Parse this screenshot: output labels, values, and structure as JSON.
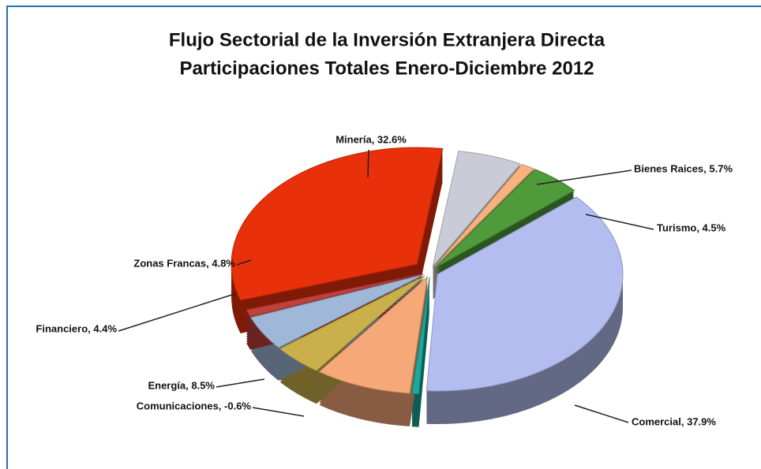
{
  "chart_data": {
    "type": "pie3d",
    "title": "Flujo Sectorial de la Inversión Extranjera Directa",
    "subtitle": "Participaciones Totales Enero-Diciembre 2012",
    "values": [
      32.6,
      5.7,
      1.2,
      4.5,
      37.9,
      -0.6,
      8.5,
      4.4,
      4.8,
      1.0
    ],
    "value_labels": [
      "Minería, 32.6%",
      "Bienes Raices, 5.7%",
      null,
      "Turismo, 4.5%",
      "Comercial, 37.9%",
      "Comunicaciones, -0.6%",
      "Energía, 8.5%",
      "Financiero, 4.4%",
      "Zonas Francas, 4.8%",
      null
    ],
    "colors": [
      "#e8300a",
      "#c9ccd6",
      "#f7b27e",
      "#4f9a3a",
      "#b4bdf0",
      "#1aa99a",
      "#f6a878",
      "#c9b04a",
      "#9fb8d8",
      "#c0403a"
    ]
  }
}
